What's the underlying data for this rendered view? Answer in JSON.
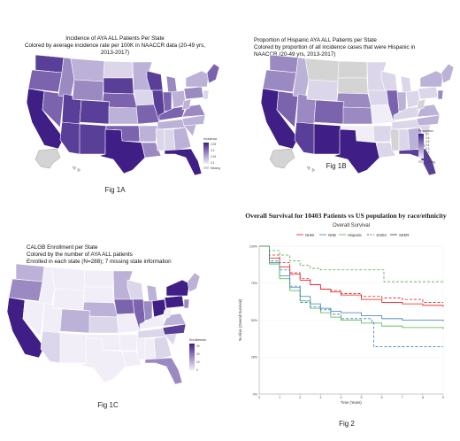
{
  "colors": {
    "map_scale": [
      "#f1eef7",
      "#dcd6ea",
      "#bcb1d7",
      "#9b8ac2",
      "#7b63ae",
      "#5a3f98",
      "#3f1f85"
    ],
    "missing": "#d4d4d4",
    "nhw": "#e41a1c",
    "nhb": "#377eb8",
    "hispanic": "#4daf4a"
  },
  "fig1a": {
    "title_lines": [
      "Incidence of AYA ALL Patients Per State",
      "Colored by average incidence rate per 100K in NAACCR data (20-49 yrs, 2013-2017)"
    ],
    "legend_title": "Incidence",
    "legend_ticks": [
      "0.25",
      "0.2",
      "0.15",
      "0.1"
    ],
    "missing_label": "Missing",
    "label": "Fig 1A"
  },
  "fig1b": {
    "title_lines": [
      "Proportion of Hispanic AYA ALL Patients per State",
      "Colored by proportion of all incidence cases that were Hispanic in",
      "NAACCR (20-49 yrs, 2013-2017)"
    ],
    "legend_title": "Proportion",
    "legend_ticks": [
      "0.7",
      "0.6",
      "0.5",
      "0.4",
      "0.3",
      "0.2",
      "0.1"
    ],
    "missing_label": "Missing",
    "label": "Fig 1B"
  },
  "fig1c": {
    "title_lines": [
      "CALGB Enrollment per State",
      "Colored by the number of AYA ALL patients",
      "Enrolled in each state (N=288); 7 missing state information"
    ],
    "legend_title": "Enrollments",
    "legend_ticks": [
      "30",
      "20",
      "10",
      "0"
    ],
    "label": "Fig 1C"
  },
  "fig2": {
    "title": "Overall Survival for 10403 Patients vs US population by race/ethnicity",
    "label": "Fig 2"
  },
  "chart_data": {
    "type": "line",
    "title": "Overall Survival",
    "xlabel": "Time (Years)",
    "ylabel": "% Alive (Overall Survival)",
    "xlim": [
      0,
      9
    ],
    "ylim": [
      0,
      100
    ],
    "x_ticks": [
      0,
      1,
      2,
      3,
      4,
      5,
      6,
      7,
      8,
      9
    ],
    "y_ticks": [
      "0%",
      "25%",
      "50%",
      "75%",
      "100%"
    ],
    "legend": [
      "NHW",
      "NHB",
      "Hispanic",
      "10403",
      "SEER"
    ],
    "legend_position": "top",
    "series": [
      {
        "name": "NHW",
        "source": "SEER",
        "color": "#e41a1c",
        "dash": "solid",
        "x": [
          0,
          0.5,
          1,
          1.5,
          2,
          2.5,
          3,
          3.5,
          4,
          5,
          6,
          7,
          8,
          9
        ],
        "y": [
          100,
          92,
          86,
          81,
          77,
          74,
          71,
          69,
          67,
          64,
          62,
          61,
          60,
          59
        ]
      },
      {
        "name": "NHB",
        "source": "SEER",
        "color": "#377eb8",
        "dash": "solid",
        "x": [
          0,
          0.5,
          1,
          1.5,
          2,
          2.5,
          3,
          3.5,
          4,
          5,
          6,
          7,
          8,
          9
        ],
        "y": [
          100,
          89,
          80,
          72,
          66,
          61,
          58,
          56,
          55,
          53,
          51,
          50,
          50,
          49
        ]
      },
      {
        "name": "Hispanic",
        "source": "SEER",
        "color": "#4daf4a",
        "dash": "solid",
        "x": [
          0,
          0.5,
          1,
          1.5,
          2,
          2.5,
          3,
          3.5,
          4,
          5,
          6,
          7,
          8,
          9
        ],
        "y": [
          100,
          88,
          78,
          70,
          63,
          58,
          55,
          52,
          50,
          48,
          46,
          45,
          45,
          44
        ]
      },
      {
        "name": "NHW",
        "source": "10403",
        "color": "#e41a1c",
        "dash": "dashed",
        "x": [
          0,
          0.5,
          1,
          1.5,
          2,
          2.5,
          3,
          3.5,
          4,
          5,
          6,
          7,
          8,
          9
        ],
        "y": [
          100,
          94,
          89,
          82,
          78,
          74,
          71,
          70,
          68,
          66,
          65,
          64,
          62,
          62
        ]
      },
      {
        "name": "NHB",
        "source": "10403",
        "color": "#377eb8",
        "dash": "dashed",
        "x": [
          0,
          0.5,
          1,
          1.5,
          2,
          2.5,
          3,
          3.5,
          4,
          5,
          5.5,
          5.6,
          7,
          9
        ],
        "y": [
          100,
          90,
          84,
          73,
          62,
          59,
          57,
          54,
          51,
          51,
          49,
          32,
          32,
          32
        ]
      },
      {
        "name": "Hispanic",
        "source": "10403",
        "color": "#4daf4a",
        "dash": "dashed",
        "x": [
          0,
          0.5,
          1,
          1.5,
          2,
          2.5,
          3,
          4,
          5,
          6,
          6.1,
          7,
          8,
          9
        ],
        "y": [
          100,
          97,
          94,
          90,
          87,
          85,
          84,
          84,
          84,
          84,
          76,
          76,
          76,
          76
        ]
      }
    ]
  }
}
